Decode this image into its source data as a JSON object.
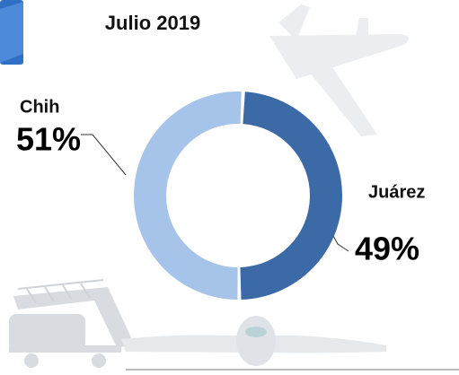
{
  "chart_data": {
    "type": "donut",
    "title": "Julio 2019",
    "categories": [
      "Juárez",
      "Chih"
    ],
    "values": [
      49,
      51
    ],
    "value_labels": [
      "49%",
      "51%"
    ],
    "colors": [
      "#3c6aa6",
      "#a6c4ea"
    ]
  }
}
